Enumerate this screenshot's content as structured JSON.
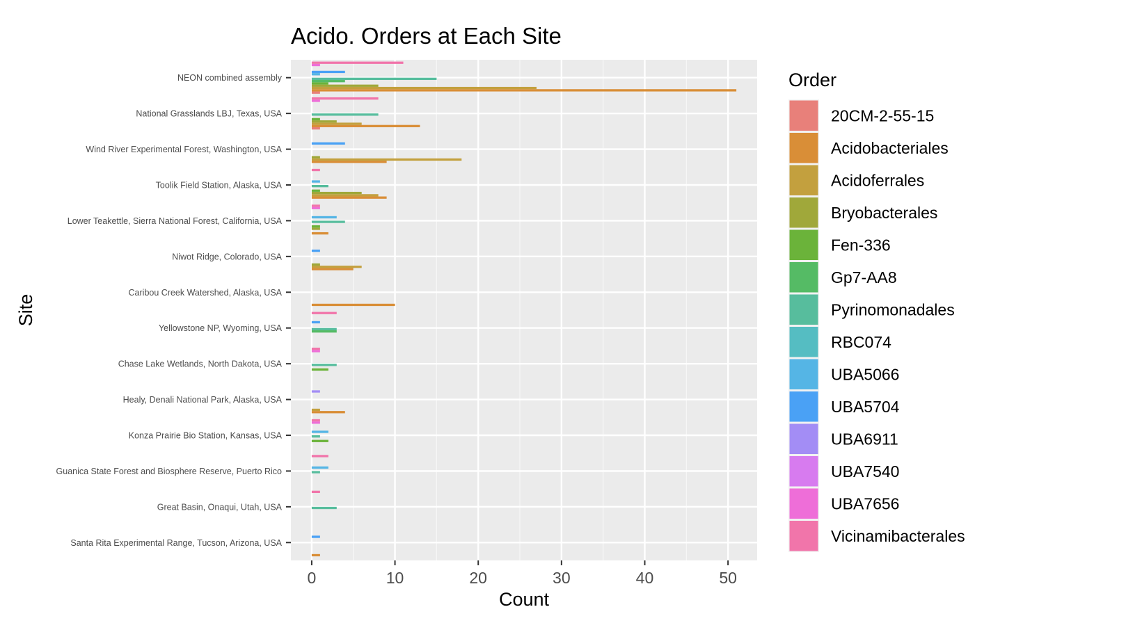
{
  "chart_data": {
    "type": "bar",
    "orientation": "horizontal",
    "grouping": "dodge",
    "title": "Acido. Orders at Each Site",
    "xlabel": "Count",
    "ylabel": "Site",
    "xlim": [
      -2.5,
      53.5
    ],
    "xticks": [
      0,
      10,
      20,
      30,
      40,
      50
    ],
    "grid": true,
    "legend_title": "Order",
    "legend_position": "right",
    "orders": [
      "20CM-2-55-15",
      "Acidobacteriales",
      "Acidoferrales",
      "Bryobacterales",
      "Fen-336",
      "Gp7-AA8",
      "Pyrinomonadales",
      "RBC074",
      "UBA5066",
      "UBA5704",
      "UBA6911",
      "UBA7540",
      "UBA7656",
      "Vicinamibacterales"
    ],
    "colors": [
      "#E8807A",
      "#D98E37",
      "#C3A03E",
      "#A0A83A",
      "#6BB33A",
      "#55BB65",
      "#57BD9D",
      "#55BDC2",
      "#55B5E5",
      "#4AA1F5",
      "#A38DF5",
      "#D77BEF",
      "#EE6ED8",
      "#F175AA"
    ],
    "sites": [
      {
        "name": "NEON combined assembly",
        "values": [
          {
            "order": "20CM-2-55-15",
            "count": 1
          },
          {
            "order": "Acidobacteriales",
            "count": 51
          },
          {
            "order": "Acidoferrales",
            "count": 27
          },
          {
            "order": "Bryobacterales",
            "count": 8
          },
          {
            "order": "Fen-336",
            "count": 2
          },
          {
            "order": "Gp7-AA8",
            "count": 4
          },
          {
            "order": "Pyrinomonadales",
            "count": 15
          },
          {
            "order": "UBA5066",
            "count": 1
          },
          {
            "order": "UBA5704",
            "count": 4
          },
          {
            "order": "UBA7656",
            "count": 1
          },
          {
            "order": "Vicinamibacterales",
            "count": 11
          }
        ]
      },
      {
        "name": "National Grasslands LBJ, Texas, USA",
        "values": [
          {
            "order": "20CM-2-55-15",
            "count": 1
          },
          {
            "order": "Acidobacteriales",
            "count": 13
          },
          {
            "order": "Acidoferrales",
            "count": 6
          },
          {
            "order": "Bryobacterales",
            "count": 3
          },
          {
            "order": "Fen-336",
            "count": 1
          },
          {
            "order": "Pyrinomonadales",
            "count": 8
          },
          {
            "order": "UBA7656",
            "count": 1
          },
          {
            "order": "Vicinamibacterales",
            "count": 8
          }
        ]
      },
      {
        "name": "Wind River Experimental Forest, Washington, USA",
        "values": [
          {
            "order": "Acidobacteriales",
            "count": 9
          },
          {
            "order": "Acidoferrales",
            "count": 18
          },
          {
            "order": "Bryobacterales",
            "count": 1
          },
          {
            "order": "UBA5704",
            "count": 4
          }
        ]
      },
      {
        "name": "Toolik Field Station, Alaska, USA",
        "values": [
          {
            "order": "Acidobacteriales",
            "count": 9
          },
          {
            "order": "Acidoferrales",
            "count": 8
          },
          {
            "order": "Bryobacterales",
            "count": 6
          },
          {
            "order": "Fen-336",
            "count": 1
          },
          {
            "order": "Pyrinomonadales",
            "count": 2
          },
          {
            "order": "UBA5066",
            "count": 1
          },
          {
            "order": "Vicinamibacterales",
            "count": 1
          }
        ]
      },
      {
        "name": "Lower Teakettle, Sierra National Forest, California, USA",
        "values": [
          {
            "order": "Acidobacteriales",
            "count": 2
          },
          {
            "order": "Bryobacterales",
            "count": 1
          },
          {
            "order": "Fen-336",
            "count": 1
          },
          {
            "order": "Pyrinomonadales",
            "count": 4
          },
          {
            "order": "UBA5066",
            "count": 3
          },
          {
            "order": "UBA7656",
            "count": 1
          },
          {
            "order": "Vicinamibacterales",
            "count": 1
          }
        ]
      },
      {
        "name": "Niwot Ridge, Colorado, USA",
        "values": [
          {
            "order": "Acidobacteriales",
            "count": 5
          },
          {
            "order": "Acidoferrales",
            "count": 6
          },
          {
            "order": "Bryobacterales",
            "count": 1
          },
          {
            "order": "UBA5704",
            "count": 1
          }
        ]
      },
      {
        "name": "Caribou Creek Watershed, Alaska, USA",
        "values": [
          {
            "order": "Acidobacteriales",
            "count": 10
          }
        ]
      },
      {
        "name": "Yellowstone NP, Wyoming, USA",
        "values": [
          {
            "order": "Gp7-AA8",
            "count": 3
          },
          {
            "order": "Pyrinomonadales",
            "count": 3
          },
          {
            "order": "UBA5704",
            "count": 1
          },
          {
            "order": "Vicinamibacterales",
            "count": 3
          }
        ]
      },
      {
        "name": "Chase Lake Wetlands, North Dakota, USA",
        "values": [
          {
            "order": "Fen-336",
            "count": 2
          },
          {
            "order": "Pyrinomonadales",
            "count": 3
          },
          {
            "order": "UBA7656",
            "count": 1
          },
          {
            "order": "Vicinamibacterales",
            "count": 1
          }
        ]
      },
      {
        "name": "Healy, Denali National Park, Alaska, USA",
        "values": [
          {
            "order": "Acidobacteriales",
            "count": 4
          },
          {
            "order": "Acidoferrales",
            "count": 1
          },
          {
            "order": "UBA6911",
            "count": 1
          }
        ]
      },
      {
        "name": "Konza Prairie Bio Station, Kansas, USA",
        "values": [
          {
            "order": "Fen-336",
            "count": 2
          },
          {
            "order": "Pyrinomonadales",
            "count": 1
          },
          {
            "order": "UBA5066",
            "count": 2
          },
          {
            "order": "UBA7656",
            "count": 1
          },
          {
            "order": "Vicinamibacterales",
            "count": 1
          }
        ]
      },
      {
        "name": "Guanica State Forest and Biosphere Reserve, Puerto Rico",
        "values": [
          {
            "order": "Pyrinomonadales",
            "count": 1
          },
          {
            "order": "UBA5066",
            "count": 2
          },
          {
            "order": "Vicinamibacterales",
            "count": 2
          }
        ]
      },
      {
        "name": "Great Basin, Onaqui, Utah, USA",
        "values": [
          {
            "order": "Pyrinomonadales",
            "count": 3
          },
          {
            "order": "Vicinamibacterales",
            "count": 1
          }
        ]
      },
      {
        "name": "Santa Rita Experimental Range, Tucson, Arizona, USA",
        "values": [
          {
            "order": "Acidobacteriales",
            "count": 1
          },
          {
            "order": "UBA5704",
            "count": 1
          }
        ]
      }
    ]
  }
}
